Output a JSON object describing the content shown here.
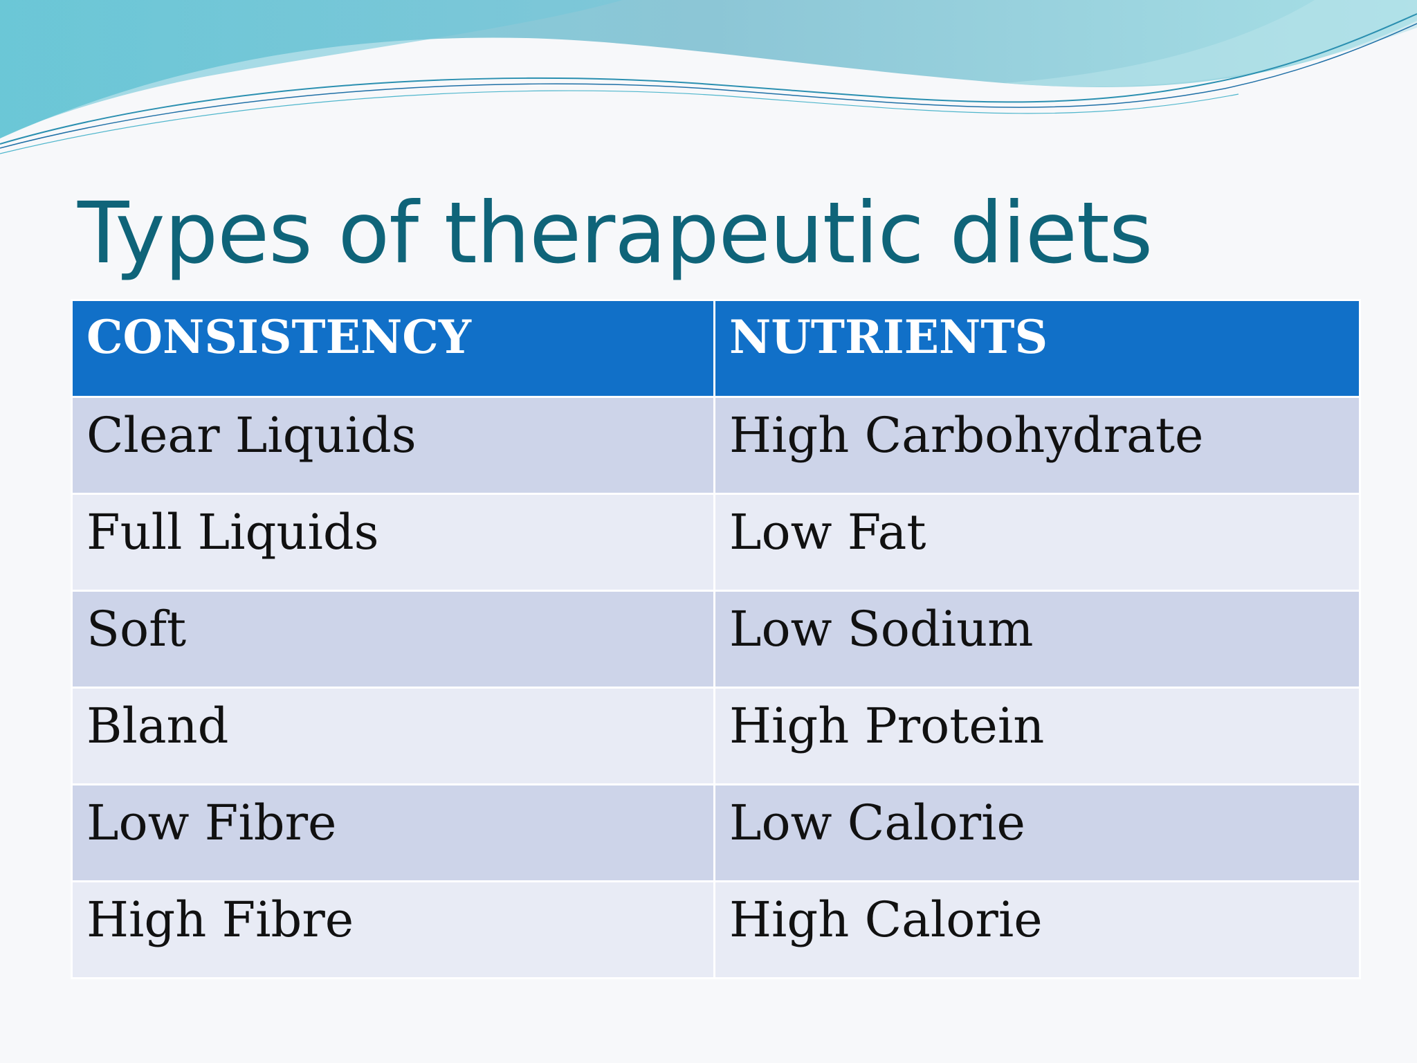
{
  "slide": {
    "title": "Types of therapeutic diets",
    "colors": {
      "title": "#0f6479",
      "header_bg": "#1170c8",
      "row_odd_bg": "#cdd4e9",
      "row_even_bg": "#e8ebf5",
      "wave_accent": "#6ec9d8"
    }
  },
  "table": {
    "headers": [
      "CONSISTENCY",
      "NUTRIENTS"
    ],
    "rows": [
      [
        "Clear Liquids",
        "High Carbohydrate"
      ],
      [
        "Full Liquids",
        "Low Fat"
      ],
      [
        "Soft",
        "Low Sodium"
      ],
      [
        "Bland",
        "High Protein"
      ],
      [
        "Low Fibre",
        "Low Calorie"
      ],
      [
        "High Fibre",
        "High Calorie"
      ]
    ]
  }
}
